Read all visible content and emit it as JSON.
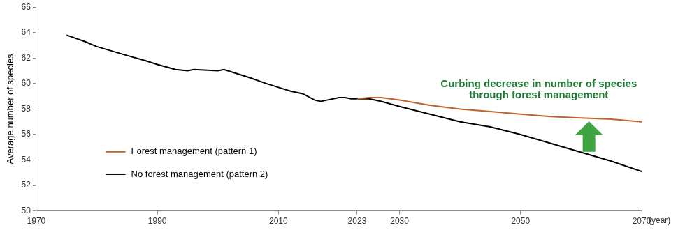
{
  "chart_data": {
    "type": "line",
    "ylabel": "Average number of species",
    "xlabel": "(year)",
    "annotation": "Curbing decrease in number of species\nthrough forest management",
    "x": [
      1975,
      1978,
      1980,
      1985,
      1988,
      1990,
      1993,
      1995,
      1996,
      2000,
      2001,
      2003,
      2005,
      2008,
      2010,
      2012,
      2014,
      2016,
      2017,
      2018,
      2020,
      2021,
      2022,
      2023,
      2025,
      2027,
      2030,
      2035,
      2040,
      2045,
      2050,
      2055,
      2060,
      2065,
      2070
    ],
    "series": [
      {
        "name": "Forest management (pattern 1)",
        "color": "#c0622b",
        "values": [
          null,
          null,
          null,
          null,
          null,
          null,
          null,
          null,
          null,
          null,
          null,
          null,
          null,
          null,
          null,
          null,
          null,
          null,
          null,
          null,
          null,
          null,
          null,
          58.8,
          58.9,
          58.9,
          58.7,
          58.3,
          58.0,
          57.8,
          57.6,
          57.4,
          57.3,
          57.2,
          57.0
        ]
      },
      {
        "name": "No forest management (pattern 2)",
        "color": "#000000",
        "values": [
          63.8,
          63.3,
          62.9,
          62.2,
          61.8,
          61.5,
          61.1,
          61.0,
          61.1,
          61.0,
          61.1,
          60.8,
          60.5,
          60.0,
          59.7,
          59.4,
          59.2,
          58.7,
          58.6,
          58.7,
          58.9,
          58.9,
          58.8,
          58.8,
          58.8,
          58.6,
          58.2,
          57.6,
          57.0,
          56.6,
          56.0,
          55.3,
          54.6,
          53.9,
          53.1
        ]
      }
    ],
    "xlim": [
      1970,
      2070
    ],
    "xticks": [
      1970,
      1990,
      2010,
      2023,
      2030,
      2050,
      2070
    ],
    "ylim": [
      50,
      66
    ],
    "yticks": [
      50,
      52,
      54,
      56,
      58,
      60,
      62,
      64,
      66
    ],
    "grid": false,
    "legend": "lower left"
  }
}
